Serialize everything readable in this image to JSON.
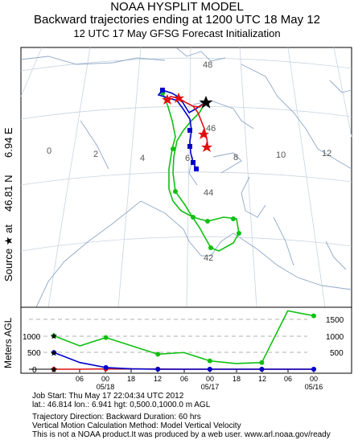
{
  "header": {
    "line1": "NOAA HYSPLIT MODEL",
    "line2": "Backward trajectories ending at 1200 UTC 18 May 12",
    "line3": "12 UTC 17 May    GFSG  Forecast Initialization"
  },
  "side_label": {
    "source": "Source ★ at",
    "lat": "46.81 N",
    "lon": "6.94 E"
  },
  "map": {
    "lon_labels": [
      "0",
      "2",
      "4",
      "6",
      "8",
      "10",
      "12"
    ],
    "lat_labels": [
      "48",
      "46",
      "44",
      "42"
    ],
    "source_marker": "black-star"
  },
  "vertical_panel": {
    "axis_title": "Meters AGL",
    "y_ticks_left": [
      "1000",
      "500",
      "0"
    ],
    "y_ticks_right": [
      "1500",
      "1000",
      "500"
    ],
    "time_ticks": [
      "06",
      "00",
      "18",
      "12",
      "06",
      "00",
      "18",
      "12",
      "06",
      "00"
    ],
    "date_labels": [
      "05/18",
      "05/17",
      "05/16"
    ]
  },
  "footer": {
    "line1": "Job Start: Thu May 17 22:04:34 UTC 2012",
    "line2": "lat.: 46.814   lon.: 6.941   hgt: 0,500.0,1000.0 m AGL",
    "line3": "Trajectory Direction: Backward        Duration: 60 hrs",
    "line4": "Vertical Motion Calculation Method: Model Vertical Velocity",
    "line5": "This is not a NOAA product.It was produced by a web user.  www.arl.noaa.gov/ready"
  },
  "colors": {
    "red": "#e01010",
    "blue": "#0000cc",
    "green": "#10c010",
    "coast": "#8fa8c8",
    "grid": "#c8d4e0"
  },
  "chart_data": {
    "type": "line",
    "ylabel": "Meters AGL",
    "x": [
      "05/18 12",
      "05/18 06",
      "05/18 00",
      "05/17 18",
      "05/17 12",
      "05/17 06",
      "05/17 00",
      "05/16 18",
      "05/16 12",
      "05/16 06",
      "05/16 00"
    ],
    "series": [
      {
        "values": [
          0,
          0,
          10,
          10,
          5,
          0,
          0,
          0,
          0,
          0,
          0
        ]
      },
      {
        "values": [
          500,
          200,
          50,
          10,
          0,
          0,
          0,
          0,
          0,
          0,
          0
        ]
      },
      {
        "values": [
          1000,
          700,
          950,
          700,
          450,
          500,
          250,
          170,
          200,
          1750,
          1600
        ]
      }
    ]
  }
}
